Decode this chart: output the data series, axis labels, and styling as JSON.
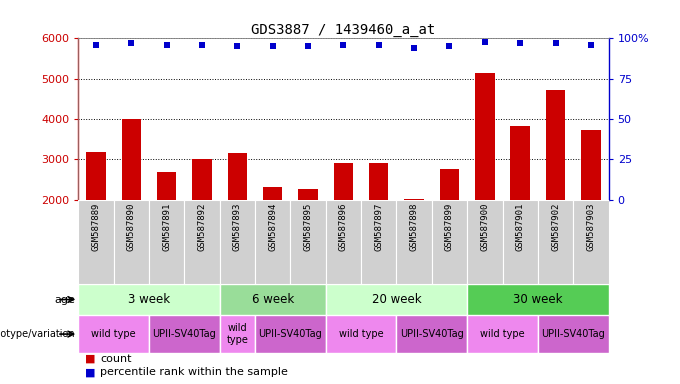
{
  "title": "GDS3887 / 1439460_a_at",
  "samples": [
    "GSM587889",
    "GSM587890",
    "GSM587891",
    "GSM587892",
    "GSM587893",
    "GSM587894",
    "GSM587895",
    "GSM587896",
    "GSM587897",
    "GSM587898",
    "GSM587899",
    "GSM587900",
    "GSM587901",
    "GSM587902",
    "GSM587903"
  ],
  "counts": [
    3180,
    4000,
    2680,
    3000,
    3150,
    2320,
    2260,
    2900,
    2900,
    2020,
    2760,
    5150,
    3820,
    4720,
    3720
  ],
  "percentile_ranks": [
    96,
    97,
    96,
    96,
    95,
    95,
    95,
    96,
    96,
    94,
    95,
    98,
    97,
    97,
    96
  ],
  "ylim_left": [
    2000,
    6000
  ],
  "ylim_right": [
    0,
    100
  ],
  "yticks_left": [
    2000,
    3000,
    4000,
    5000,
    6000
  ],
  "yticks_right": [
    0,
    25,
    50,
    75,
    100
  ],
  "bar_color": "#cc0000",
  "dot_color": "#0000cc",
  "age_groups": [
    {
      "label": "3 week",
      "start": 0,
      "end": 4,
      "color": "#ccffcc"
    },
    {
      "label": "6 week",
      "start": 4,
      "end": 7,
      "color": "#99dd99"
    },
    {
      "label": "20 week",
      "start": 7,
      "end": 11,
      "color": "#ccffcc"
    },
    {
      "label": "30 week",
      "start": 11,
      "end": 15,
      "color": "#55cc55"
    }
  ],
  "geno_groups": [
    {
      "label": "wild type",
      "start": 0,
      "end": 2,
      "color": "#ee88ee"
    },
    {
      "label": "UPII-SV40Tag",
      "start": 2,
      "end": 4,
      "color": "#cc66cc"
    },
    {
      "label": "wild\ntype",
      "start": 4,
      "end": 5,
      "color": "#ee88ee"
    },
    {
      "label": "UPII-SV40Tag",
      "start": 5,
      "end": 7,
      "color": "#cc66cc"
    },
    {
      "label": "wild type",
      "start": 7,
      "end": 9,
      "color": "#ee88ee"
    },
    {
      "label": "UPII-SV40Tag",
      "start": 9,
      "end": 11,
      "color": "#cc66cc"
    },
    {
      "label": "wild type",
      "start": 11,
      "end": 13,
      "color": "#ee88ee"
    },
    {
      "label": "UPII-SV40Tag",
      "start": 13,
      "end": 15,
      "color": "#cc66cc"
    }
  ],
  "age_row_label": "age",
  "geno_row_label": "genotype/variation",
  "legend_count": "count",
  "legend_percentile": "percentile rank within the sample",
  "background_color": "#ffffff",
  "left_axis_color": "#cc0000",
  "right_axis_color": "#0000cc",
  "xlabel_bg": "#d0d0d0",
  "xlabel_border": "#aaaaaa"
}
